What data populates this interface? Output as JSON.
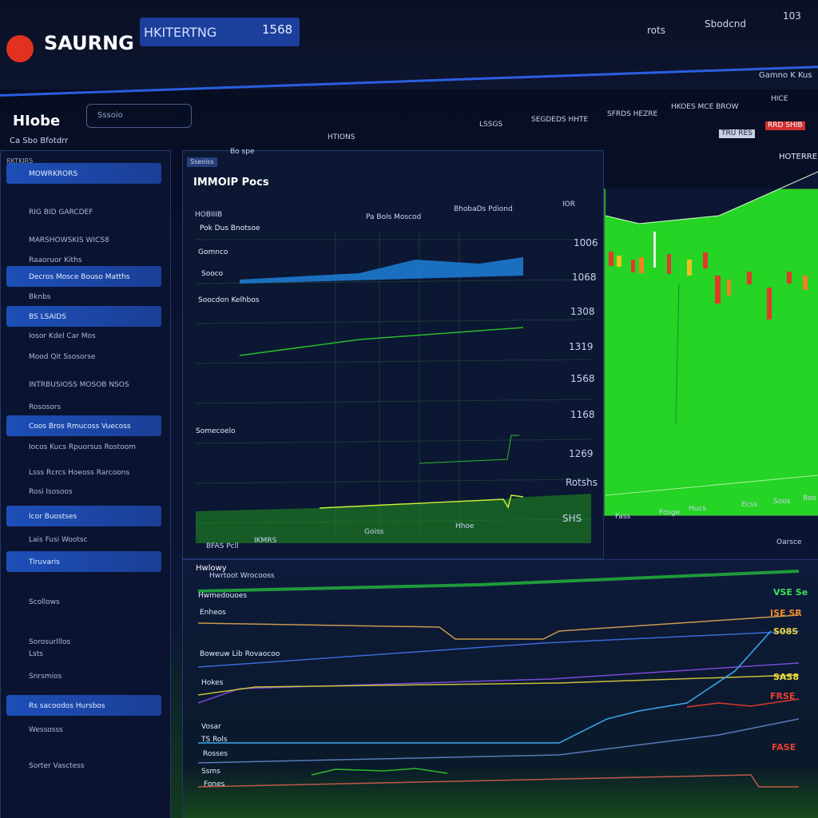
{
  "header": {
    "brand": "SAURNG",
    "tab": "HKITERTNG",
    "tab_badge": "1568",
    "nav": [
      "rots",
      "Sbodcnd",
      "103"
    ],
    "user": "Gamno K Kus"
  },
  "toolbar": {
    "title": "HIobe",
    "search": "Sssoio",
    "subtitle": "Ca Sbo Bfotdrr",
    "tabs": [
      "HTIONS",
      "LSSGS",
      "SEGDEDS HHTE",
      "SFRDS HEZRE",
      "HKOES MCE BROW",
      "HICE"
    ]
  },
  "sidebar": {
    "section": "RKTKIRS",
    "items": [
      "MOWRKRORS",
      "RIG BID GARCDEF",
      "MARSHOWSKIS WICS8",
      "Raaoruor Kiths",
      "Decros Mosce Bouso Matths",
      "Bknbs",
      "BS LSAIDS",
      "Iosor Kdel Car Mos",
      "Mood Qit Ssosorse",
      "INTRBUSIOSS MOSOB NSOS",
      "Rososors",
      "Coos Bros Rmucoss Vuecoss",
      "Iocos Kucs Rpuorsus Rostoom",
      "Lsss Rcrcs Hoeoss Rarcoons",
      "Rosi Isosoos",
      "Icor Buostses",
      "Lais Fusi Wootsc",
      "Tiruvaris",
      "Scollows",
      "Sorosurlllos",
      "Lsts",
      "Snrsmios",
      "Rs sacoodos Hursbos",
      "Wessosss",
      "Sorter Vasctess"
    ]
  },
  "main_panel": {
    "chip": "Sseoiss",
    "tab": "Bo spe",
    "title": "IMMOIP Pocs",
    "filters": [
      "HOBIIIB",
      "Pa Bols Moscod",
      "BhobaDs Pdiond",
      "IOR"
    ],
    "row_labels": [
      "Pok Dus Bnotsoe",
      "Gomnco",
      "Sooco",
      "Soocdon Kelhbos",
      "Somecoelo"
    ],
    "y_labels": [
      "1006",
      "1068",
      "1308",
      "1319",
      "1568",
      "1168",
      "1269",
      "Rotshs",
      "SHS"
    ],
    "x_labels": [
      "BFAS Pcll",
      "IKMRS",
      "Goiss",
      "Hhoe"
    ]
  },
  "right_panel": {
    "chips": [
      "TRU RES",
      "RRD SHIB"
    ],
    "title": "HOTERRE",
    "x_labels": [
      "Fass",
      "Fosge",
      "Hucs",
      "Ecss",
      "Soos",
      "Boe"
    ],
    "footer": "Oarsce"
  },
  "bottom_panel": {
    "title": "Hwlowy",
    "subtitle": "Hwrtoot Wrocooss",
    "series_labels": [
      "Hwmedouoes",
      "Enheos",
      "Boweuw Lib Rovaocoo",
      "Hokes",
      "Vosar",
      "TS Rols",
      "Rosses",
      "Ssms",
      "Fones"
    ],
    "value_labels": [
      "VSE Se",
      "ISE SR",
      "S08S",
      "SAS8",
      "FRSE",
      "FASE"
    ]
  }
}
